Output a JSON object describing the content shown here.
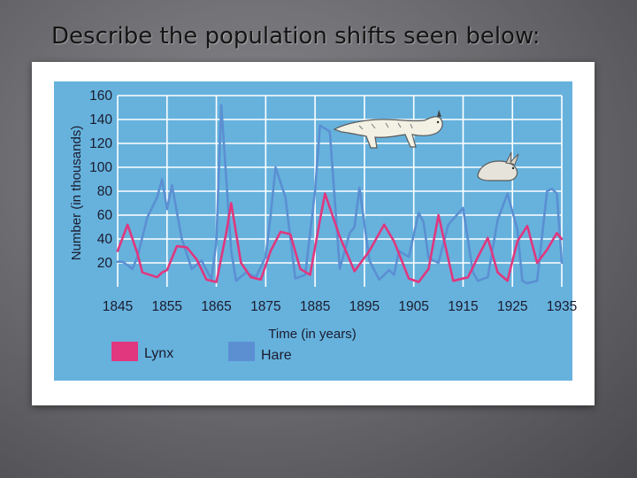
{
  "slide": {
    "title": "Describe the population shifts seen below:"
  },
  "chart_data": {
    "type": "line",
    "xlabel": "Time (in years)",
    "ylabel": "Number (in thousands)",
    "xlim": [
      1845,
      1935
    ],
    "ylim": [
      0,
      160
    ],
    "x_ticks": [
      "1845",
      "1855",
      "1865",
      "1875",
      "1885",
      "1895",
      "1905",
      "1915",
      "1925",
      "1935"
    ],
    "y_ticks": [
      "20",
      "40",
      "60",
      "80",
      "100",
      "120",
      "140",
      "160"
    ],
    "grid": true,
    "legend": "bottom-left",
    "colors": {
      "plot_background": "#66b2dd",
      "grid": "#ffffff",
      "lynx": "#e0377e",
      "hare": "#5b8fd2"
    },
    "illustrations": [
      "lynx-illustration",
      "hare-illustration"
    ],
    "series": [
      {
        "name": "Lynx",
        "x": [
          1845,
          1847,
          1849,
          1850,
          1853,
          1854,
          1855,
          1857,
          1859,
          1861,
          1863,
          1865,
          1867,
          1868,
          1870,
          1872,
          1874,
          1876,
          1878,
          1880,
          1882,
          1884,
          1886,
          1887,
          1890,
          1893,
          1896,
          1899,
          1901,
          1904,
          1906,
          1908,
          1910,
          1913,
          1916,
          1918,
          1920,
          1922,
          1924,
          1926,
          1928,
          1930,
          1932,
          1934,
          1935
        ],
        "y": [
          30,
          52,
          28,
          12,
          8,
          12,
          14,
          34,
          33,
          23,
          6,
          4,
          45,
          70,
          20,
          8,
          6,
          30,
          46,
          44,
          15,
          10,
          56,
          78,
          42,
          13,
          30,
          52,
          38,
          7,
          4,
          15,
          60,
          5,
          8,
          25,
          41,
          12,
          5,
          38,
          51,
          20,
          31,
          45,
          40
        ]
      },
      {
        "name": "Hare",
        "x": [
          1845,
          1846,
          1847,
          1848,
          1849,
          1851,
          1853,
          1854,
          1855,
          1856,
          1858,
          1860,
          1862,
          1864,
          1865,
          1866,
          1868,
          1869,
          1871,
          1873,
          1875,
          1876,
          1877,
          1879,
          1881,
          1883,
          1885,
          1886,
          1888,
          1890,
          1892,
          1893,
          1894,
          1896,
          1898,
          1900,
          1901,
          1902,
          1904,
          1906,
          1907,
          1908,
          1910,
          1912,
          1915,
          1917,
          1918,
          1920,
          1922,
          1924,
          1926,
          1927,
          1928,
          1930,
          1932,
          1933,
          1934,
          1935
        ],
        "y": [
          21,
          21,
          18,
          15,
          25,
          58,
          75,
          90,
          65,
          85,
          40,
          15,
          22,
          6,
          38,
          152,
          30,
          5,
          12,
          8,
          25,
          60,
          100,
          75,
          7,
          10,
          80,
          135,
          130,
          15,
          45,
          50,
          83,
          22,
          6,
          14,
          10,
          30,
          25,
          62,
          54,
          24,
          20,
          52,
          66,
          12,
          5,
          8,
          56,
          78,
          48,
          5,
          3,
          5,
          80,
          82,
          78,
          20
        ]
      }
    ]
  }
}
